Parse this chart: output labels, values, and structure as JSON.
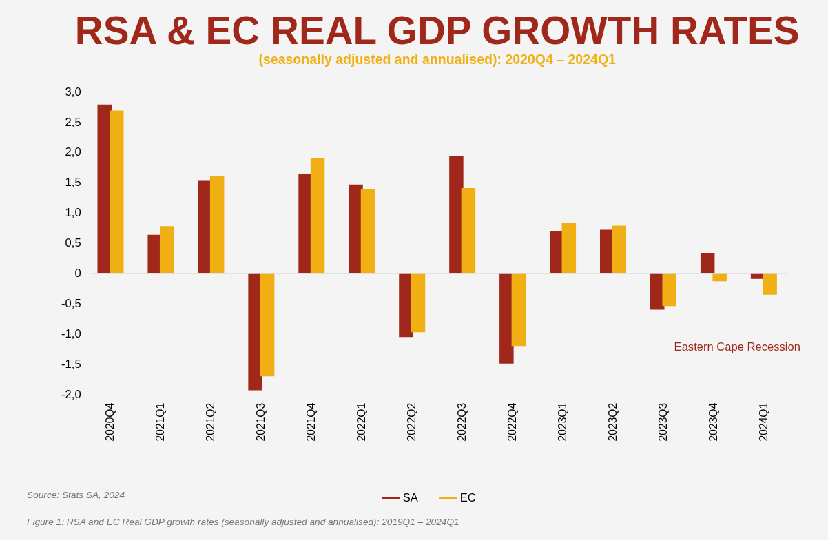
{
  "chart_data": {
    "type": "bar",
    "title": "RSA & EC REAL GDP GROWTH RATES",
    "subtitle": "(seasonally adjusted and annualised): 2020Q4 – 2024Q1",
    "categories": [
      "2020Q4",
      "2021Q1",
      "2021Q2",
      "2021Q3",
      "2021Q4",
      "2022Q1",
      "2022Q2",
      "2022Q3",
      "2022Q4",
      "2023Q1",
      "2023Q2",
      "2023Q3",
      "2023Q4",
      "2024Q1"
    ],
    "series": [
      {
        "name": "SA",
        "color": "#a0281a",
        "values": [
          2.79,
          0.64,
          1.53,
          -1.93,
          1.65,
          1.47,
          -1.05,
          1.94,
          -1.49,
          0.7,
          0.72,
          -0.6,
          0.34,
          -0.09
        ]
      },
      {
        "name": "EC",
        "color": "#f0b014",
        "values": [
          2.69,
          0.78,
          1.61,
          -1.7,
          1.91,
          1.39,
          -0.97,
          1.41,
          -1.2,
          0.83,
          0.79,
          -0.54,
          -0.13,
          -0.35
        ]
      }
    ],
    "ylim": [
      -2.0,
      3.0
    ],
    "yticks": [
      {
        "value": -2.0,
        "label": "-2,0"
      },
      {
        "value": -1.5,
        "label": "-1,5"
      },
      {
        "value": -1.0,
        "label": "-1,0"
      },
      {
        "value": -0.5,
        "label": "-0,5"
      },
      0,
      {
        "value": 0.5,
        "label": "0,5"
      },
      {
        "value": 1.0,
        "label": "1,0"
      },
      {
        "value": 1.5,
        "label": "1,5"
      },
      {
        "value": 2.0,
        "label": "2,0"
      },
      {
        "value": 2.5,
        "label": "2,5"
      },
      {
        "value": 3.0,
        "label": "3,0"
      }
    ],
    "ref_lines": [
      {
        "axis": "y",
        "value": 0,
        "color": "#dddddd"
      }
    ],
    "annotations": [
      "Eastern Cape Recession",
      "Source: Stats SA, 2024",
      "Figure 1: RSA and EC Real GDP growth rates (seasonally adjusted and annualised): 2019Q1 – 2024Q1"
    ],
    "grid": false,
    "legend": "bottom"
  }
}
